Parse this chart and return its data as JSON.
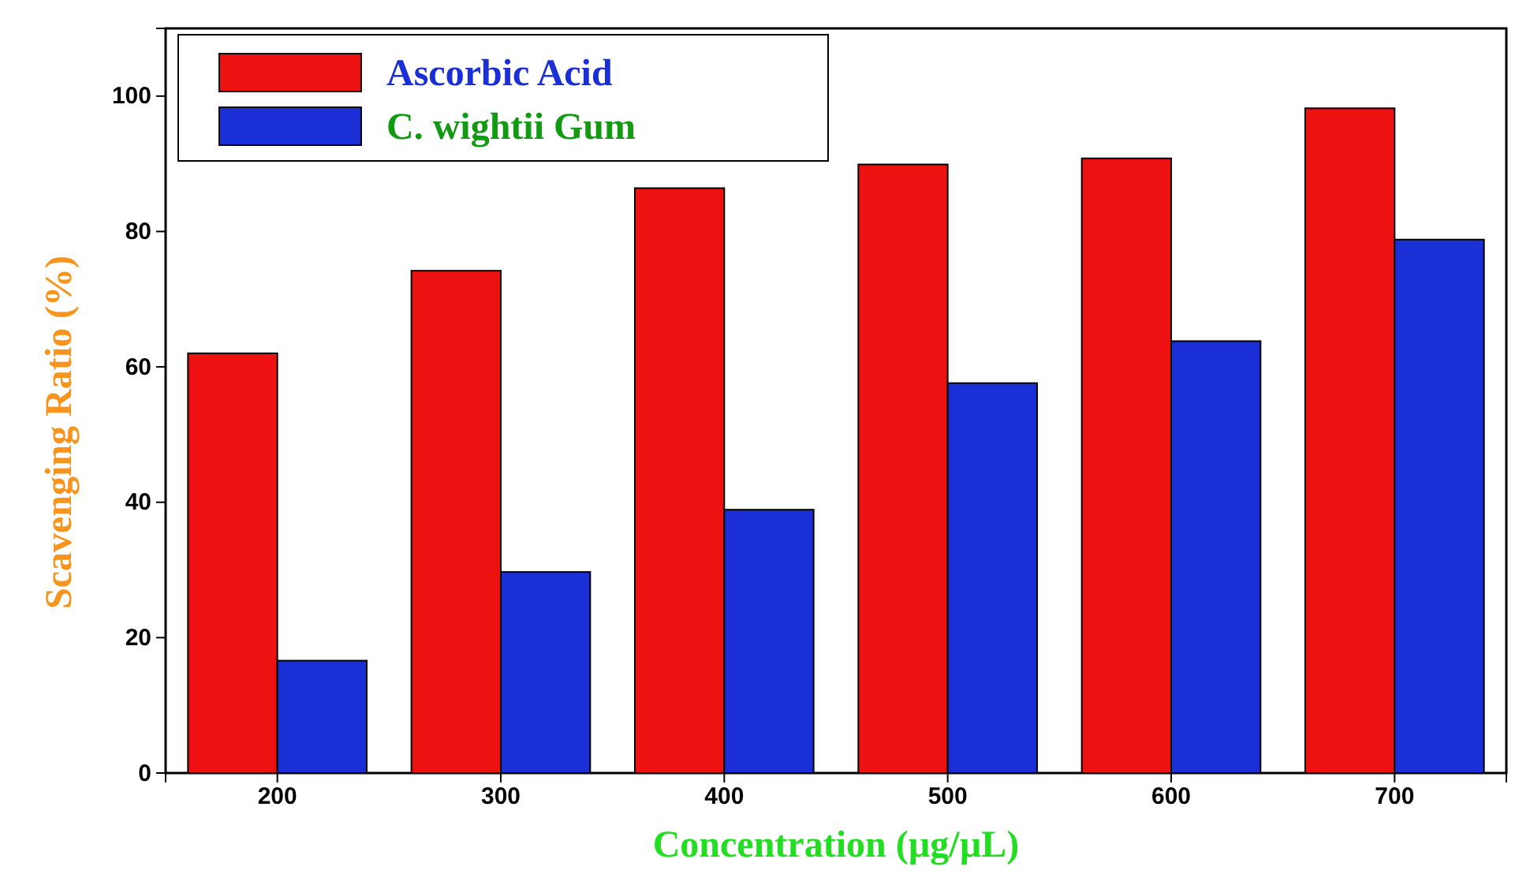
{
  "chart_data": {
    "type": "bar",
    "xlabel": "Concentration (µg/µL)",
    "ylabel": "Scavenging Ratio (%)",
    "categories": [
      "200",
      "300",
      "400",
      "500",
      "600",
      "700"
    ],
    "series": [
      {
        "name": "Ascorbic Acid",
        "color": "#ee1111",
        "values": [
          62,
          74.2,
          86.4,
          89.9,
          90.8,
          98.2
        ]
      },
      {
        "name": "C. wightii Gum",
        "color": "#1a2fd6",
        "values": [
          16.6,
          29.7,
          38.9,
          57.6,
          63.8,
          78.8
        ]
      }
    ],
    "ylim": [
      0,
      110
    ],
    "yticks": [
      0,
      20,
      40,
      60,
      80,
      100
    ],
    "grid": false,
    "legend": "top left"
  }
}
